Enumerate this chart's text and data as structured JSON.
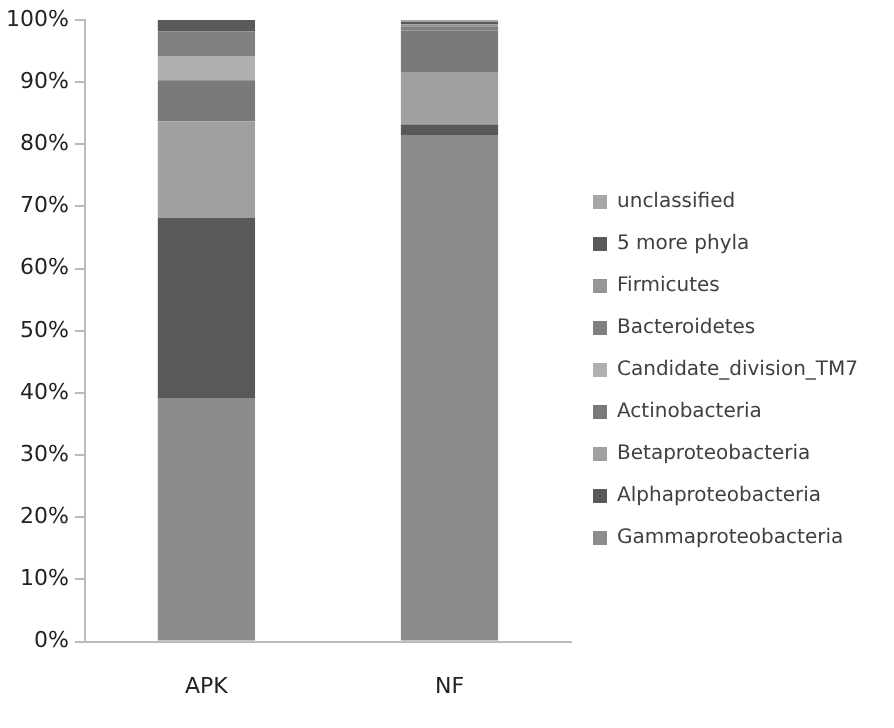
{
  "chart_data": {
    "type": "bar",
    "stacked": true,
    "categories": [
      "APK",
      "NF"
    ],
    "series": [
      {
        "name": "Gammaproteobacteria",
        "color": "#8c8c8c",
        "values": [
          39.2,
          81.5
        ]
      },
      {
        "name": "Alphaproteobacteria",
        "color": "#595959",
        "values": [
          29,
          1.7
        ]
      },
      {
        "name": "Betaproteobacteria",
        "color": "#a0a0a0",
        "values": [
          15.5,
          8.3
        ]
      },
      {
        "name": "Actinobacteria",
        "color": "#7a7a7a",
        "values": [
          6.6,
          6.8
        ]
      },
      {
        "name": "Candidate_division_TM7",
        "color": "#b0b0b0",
        "values": [
          3.9,
          0
        ]
      },
      {
        "name": "Bacteroidetes",
        "color": "#808080",
        "values": [
          4,
          0.7
        ]
      },
      {
        "name": "Firmicutes",
        "color": "#969696",
        "values": [
          0,
          0.3
        ]
      },
      {
        "name": "5 more phyla",
        "color": "#5a5a5a",
        "values": [
          1.8,
          0.4
        ]
      },
      {
        "name": "unclassified",
        "color": "#a6a6a6",
        "values": [
          0,
          0.3
        ]
      }
    ],
    "ylim": [
      0,
      100
    ],
    "yticks": [
      {
        "value": 0,
        "label": "0%"
      },
      {
        "value": 10,
        "label": "10%"
      },
      {
        "value": 20,
        "label": "20%"
      },
      {
        "value": 30,
        "label": "30%"
      },
      {
        "value": 40,
        "label": "40%"
      },
      {
        "value": 50,
        "label": "50%"
      },
      {
        "value": 60,
        "label": "60%"
      },
      {
        "value": 70,
        "label": "70%"
      },
      {
        "value": 80,
        "label": "80%"
      },
      {
        "value": 90,
        "label": "90%"
      },
      {
        "value": 100,
        "label": "100%"
      }
    ],
    "grid": false,
    "legend": "right"
  }
}
